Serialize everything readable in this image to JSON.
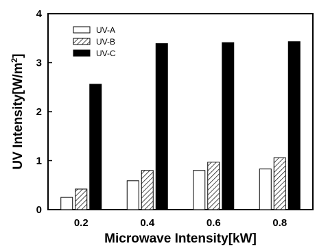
{
  "chart_data": {
    "type": "bar",
    "categories": [
      "0.2",
      "0.4",
      "0.6",
      "0.8"
    ],
    "series": [
      {
        "name": "UV-A",
        "values": [
          0.25,
          0.59,
          0.8,
          0.83
        ],
        "fill": "#ffffff",
        "pattern": "none"
      },
      {
        "name": "UV-B",
        "values": [
          0.42,
          0.8,
          0.97,
          1.06
        ],
        "fill": "#ffffff",
        "pattern": "hatch"
      },
      {
        "name": "UV-C",
        "values": [
          2.56,
          3.39,
          3.41,
          3.43
        ],
        "fill": "#000000",
        "pattern": "none"
      }
    ],
    "xlabel": "Microwave Intensity[kW]",
    "ylabel": {
      "main": "UV Intensity[W/m",
      "sup": "2",
      "close": "]"
    },
    "ylim": [
      0,
      4
    ],
    "yticks": [
      "0",
      "1",
      "2",
      "3",
      "4"
    ],
    "legend_position": "top-left",
    "grid": false
  }
}
